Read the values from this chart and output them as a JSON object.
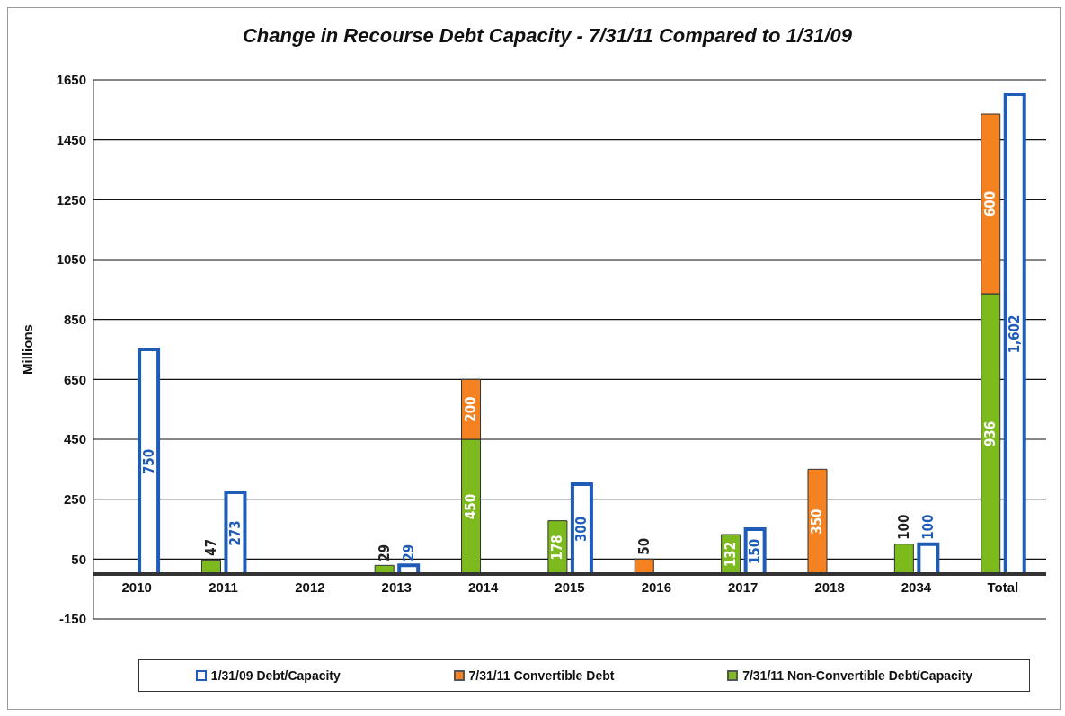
{
  "chart_data": {
    "type": "bar",
    "title": "Change in Recourse Debt Capacity - 7/31/11 Compared to 1/31/09",
    "ylabel": "Millions",
    "categories": [
      "2010",
      "2011",
      "2012",
      "2013",
      "2014",
      "2015",
      "2016",
      "2017",
      "2018",
      "2034",
      "Total"
    ],
    "series": [
      {
        "name": "7/31/11 Non-Convertible Debt/Capacity",
        "color": "#7dba1e",
        "values": [
          null,
          47,
          null,
          29,
          450,
          178,
          null,
          132,
          null,
          100,
          936
        ]
      },
      {
        "name": "7/31/11 Convertible Debt",
        "color": "#f58220",
        "values": [
          null,
          null,
          null,
          null,
          200,
          null,
          50,
          null,
          350,
          null,
          600
        ],
        "base": [
          null,
          null,
          null,
          null,
          450,
          null,
          0,
          null,
          0,
          null,
          936
        ]
      },
      {
        "name": "1/31/09 Debt/Capacity",
        "color": "#1f5cb8",
        "values": [
          750,
          273,
          null,
          29,
          null,
          300,
          null,
          150,
          null,
          100,
          1602
        ],
        "value_labels": [
          "750",
          "273",
          null,
          "29",
          null,
          "300",
          null,
          "150",
          null,
          "100",
          "1,602"
        ]
      }
    ],
    "ylim": [
      -150,
      1650
    ],
    "yticks": [
      -150,
      50,
      250,
      450,
      650,
      850,
      1050,
      1250,
      1450,
      1650
    ],
    "grid": "y",
    "legend": "bottom",
    "data_labels": true
  }
}
